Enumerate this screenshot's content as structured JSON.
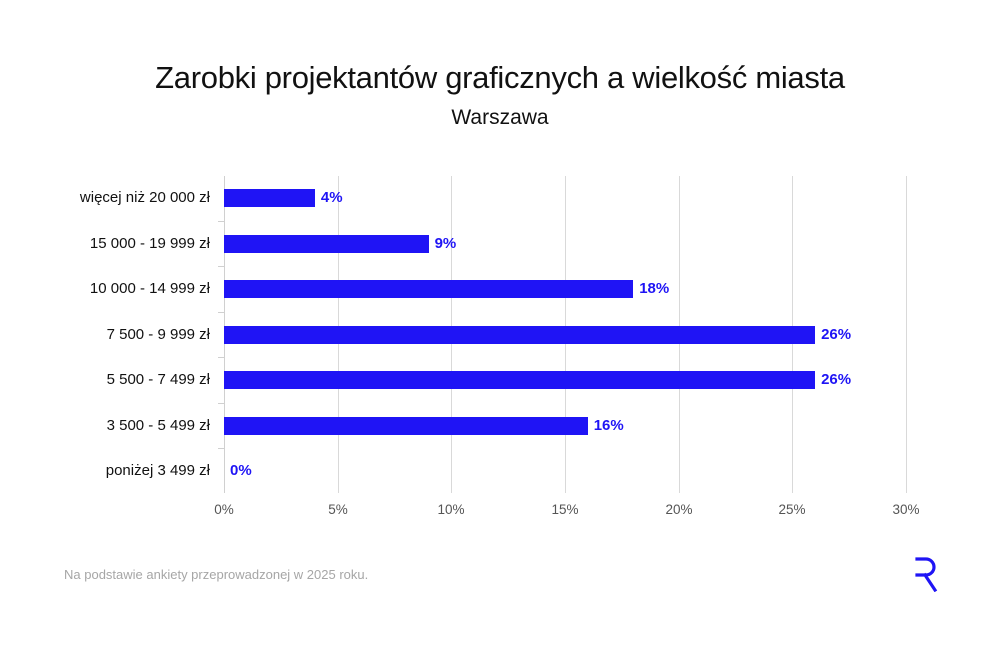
{
  "header": {
    "title": "Zarobki projektantów graficznych a wielkość miasta",
    "subtitle": "Warszawa"
  },
  "footer": {
    "note": "Na podstawie ankiety przeprowadzonej w 2025 roku.",
    "logo": "R-logo-icon"
  },
  "colors": {
    "bar": "#1f14f5",
    "grid": "#d9d9d9",
    "footnote": "#a6a6a6"
  },
  "chart_data": {
    "type": "bar",
    "orientation": "horizontal",
    "title": "Zarobki projektantów graficznych a wielkość miasta",
    "subtitle": "Warszawa",
    "xlabel": "",
    "ylabel": "",
    "categories": [
      "więcej niż 20 000 zł",
      "15 000 - 19 999 zł",
      "10 000 - 14 999 zł",
      "7 500 - 9 999 zł",
      "5 500 - 7 499 zł",
      "3 500 - 5 499 zł",
      "poniżej 3 499 zł"
    ],
    "values": [
      4,
      9,
      18,
      26,
      26,
      16,
      0
    ],
    "value_labels": [
      "4%",
      "9%",
      "18%",
      "26%",
      "26%",
      "16%",
      "0%"
    ],
    "xlim": [
      0,
      30
    ],
    "xticks": [
      "0%",
      "5%",
      "10%",
      "15%",
      "20%",
      "25%",
      "30%"
    ],
    "grid": "vertical",
    "legend": null,
    "footnote": "Na podstawie ankiety przeprowadzonej w 2025 roku."
  }
}
